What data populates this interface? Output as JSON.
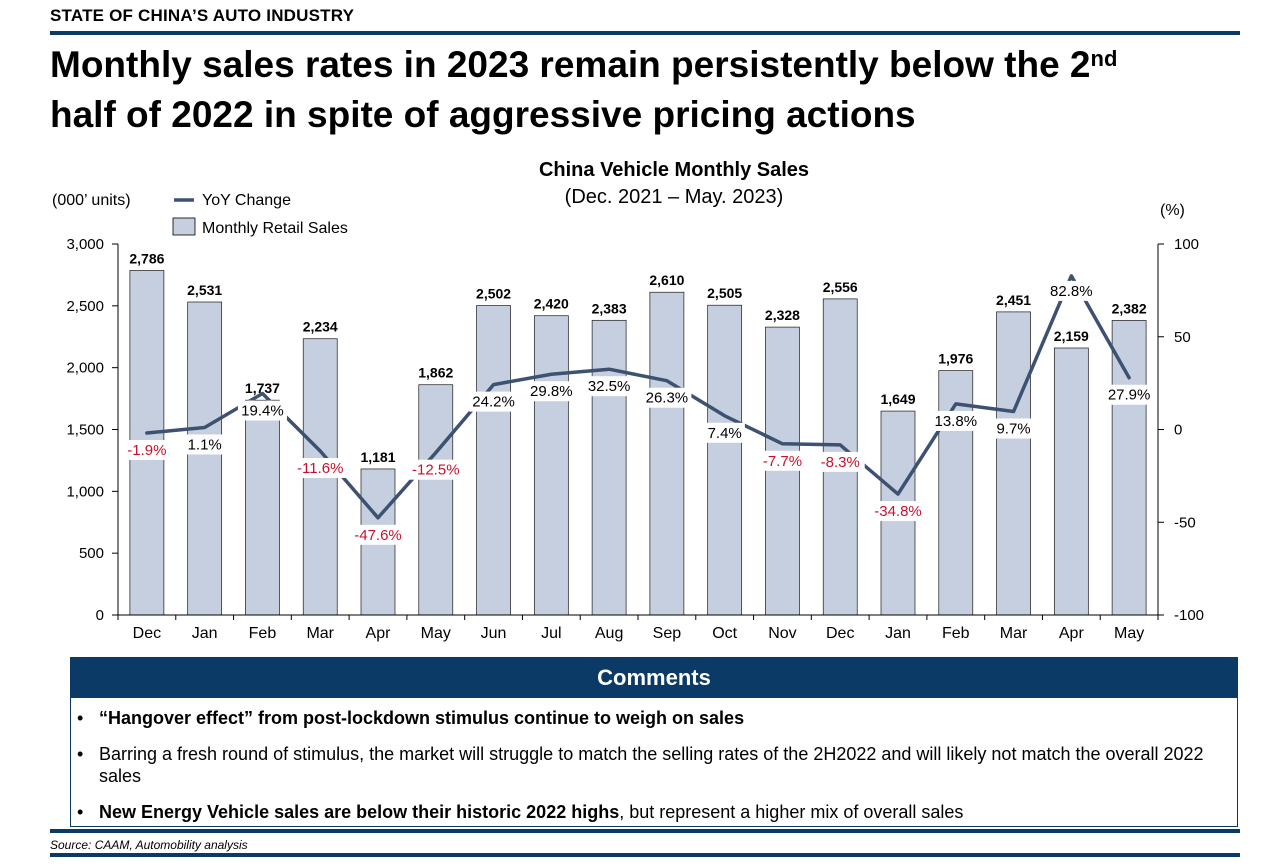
{
  "header": {
    "kicker": "STATE OF CHINA’S AUTO INDUSTRY",
    "title_main": "Monthly sales rates in 2023 remain persistently below the 2",
    "title_sup": "nd",
    "title_line2": "half of 2022 in spite of aggressive pricing actions"
  },
  "chart_data": {
    "type": "bar",
    "title": "China Vehicle Monthly Sales",
    "subtitle": "(Dec. 2021 – May. 2023)",
    "ylabel_left": "(000’ units)",
    "ylabel_right": "(%)",
    "ylim_left": [
      0,
      3000
    ],
    "yticks_left": [
      0,
      500,
      1000,
      1500,
      2000,
      2500,
      3000
    ],
    "yticks_left_labels": [
      "0",
      "500",
      "1,000",
      "1,500",
      "2,000",
      "2,500",
      "3,000"
    ],
    "ylim_right": [
      -100,
      100
    ],
    "yticks_right": [
      -100,
      -50,
      0,
      50,
      100
    ],
    "yticks_right_labels": [
      "-100",
      "-50",
      "0",
      "50",
      "100"
    ],
    "categories": [
      "Dec",
      "Jan",
      "Feb",
      "Mar",
      "Apr",
      "May",
      "Jun",
      "Jul",
      "Aug",
      "Sep",
      "Oct",
      "Nov",
      "Dec",
      "Jan",
      "Feb",
      "Mar",
      "Apr",
      "May"
    ],
    "series": [
      {
        "name": "Monthly Retail Sales",
        "type": "bar",
        "axis": "left",
        "color": "#c5cfe0",
        "values": [
          2786,
          2531,
          1737,
          2234,
          1181,
          1862,
          2502,
          2420,
          2383,
          2610,
          2505,
          2328,
          2556,
          1649,
          1976,
          2451,
          2159,
          2382
        ],
        "labels": [
          "2,786",
          "2,531",
          "1,737",
          "2,234",
          "1,181",
          "1,862",
          "2,502",
          "2,420",
          "2,383",
          "2,610",
          "2,505",
          "2,328",
          "2,556",
          "1,649",
          "1,976",
          "2,451",
          "2,159",
          "2,382"
        ]
      },
      {
        "name": "YoY Change",
        "type": "line",
        "axis": "right",
        "color": "#3d5170",
        "values": [
          -1.9,
          1.1,
          19.4,
          -11.6,
          -47.6,
          -12.5,
          24.2,
          29.8,
          32.5,
          26.3,
          7.4,
          -7.7,
          -8.3,
          -34.8,
          13.8,
          9.7,
          82.8,
          27.9
        ],
        "labels": [
          "-1.9%",
          "1.1%",
          "19.4%",
          "-11.6%",
          "-47.6%",
          "-12.5%",
          "24.2%",
          "29.8%",
          "32.5%",
          "26.3%",
          "7.4%",
          "-7.7%",
          "-8.3%",
          "-34.8%",
          "13.8%",
          "9.7%",
          "82.8%",
          "27.9%"
        ]
      }
    ],
    "colors": {
      "negative_label": "#c8102e",
      "axis": "#000000",
      "bar_outline": "#000000"
    },
    "legend_position": "top-left",
    "grid": false
  },
  "comments": {
    "heading": "Comments",
    "bullet": "•",
    "items": [
      {
        "bold": "“Hangover effect” from post-lockdown stimulus continue to weigh on sales",
        "rest": ""
      },
      {
        "bold": "",
        "rest": "Barring a fresh round of stimulus, the market will struggle to match the selling rates of the 2H2022 and will likely not match the overall 2022 sales"
      },
      {
        "bold": "New Energy Vehicle sales are below their historic 2022 highs",
        "rest": ", but represent a higher mix of overall sales"
      }
    ]
  },
  "footer": {
    "source": "Source: CAAM, Automobility analysis"
  }
}
